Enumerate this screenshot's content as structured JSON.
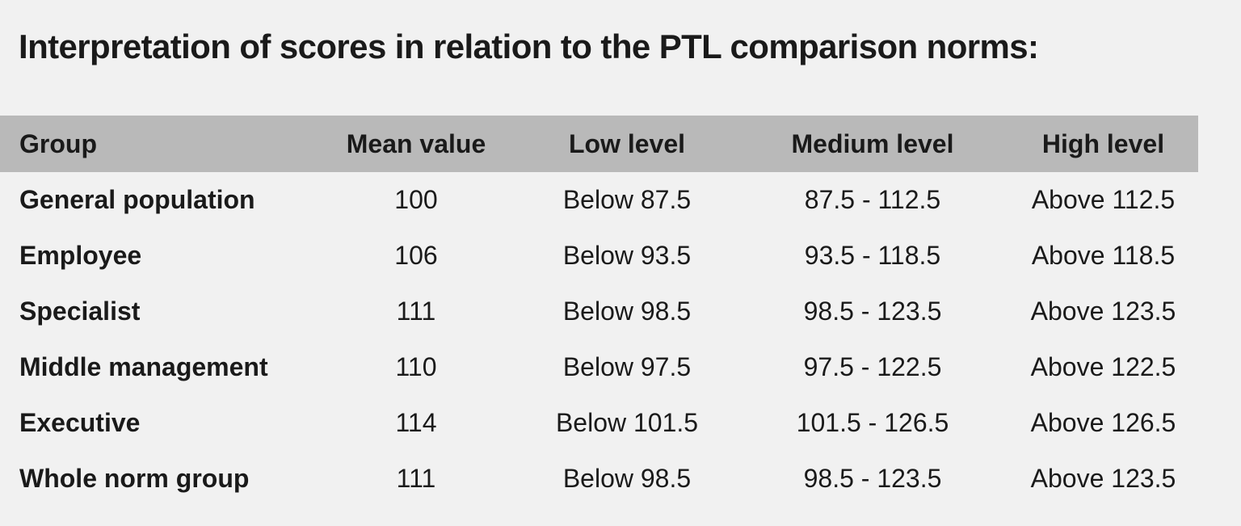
{
  "page": {
    "background_color": "#f1f1f1",
    "text_color": "#1a1a1a",
    "header_band_color": "#b9b9b9"
  },
  "title": "Interpretation of scores in relation to the PTL comparison norms:",
  "table": {
    "columns": [
      {
        "key": "group",
        "label": "Group"
      },
      {
        "key": "mean",
        "label": "Mean value"
      },
      {
        "key": "low",
        "label": "Low level"
      },
      {
        "key": "medium",
        "label": "Medium level"
      },
      {
        "key": "high",
        "label": "High level"
      }
    ],
    "rows": [
      {
        "group": "General population",
        "mean": "100",
        "low": "Below 87.5",
        "medium": "87.5 - 112.5",
        "high": "Above 112.5"
      },
      {
        "group": "Employee",
        "mean": "106",
        "low": "Below 93.5",
        "medium": "93.5 - 118.5",
        "high": "Above 118.5"
      },
      {
        "group": "Specialist",
        "mean": "111",
        "low": "Below 98.5",
        "medium": "98.5 - 123.5",
        "high": "Above 123.5"
      },
      {
        "group": "Middle management",
        "mean": "110",
        "low": "Below 97.5",
        "medium": "97.5 - 122.5",
        "high": "Above 122.5"
      },
      {
        "group": "Executive",
        "mean": "114",
        "low": "Below 101.5",
        "medium": "101.5 - 126.5",
        "high": "Above 126.5"
      },
      {
        "group": "Whole norm group",
        "mean": "111",
        "low": "Below 98.5",
        "medium": "98.5 - 123.5",
        "high": "Above 123.5"
      }
    ]
  }
}
